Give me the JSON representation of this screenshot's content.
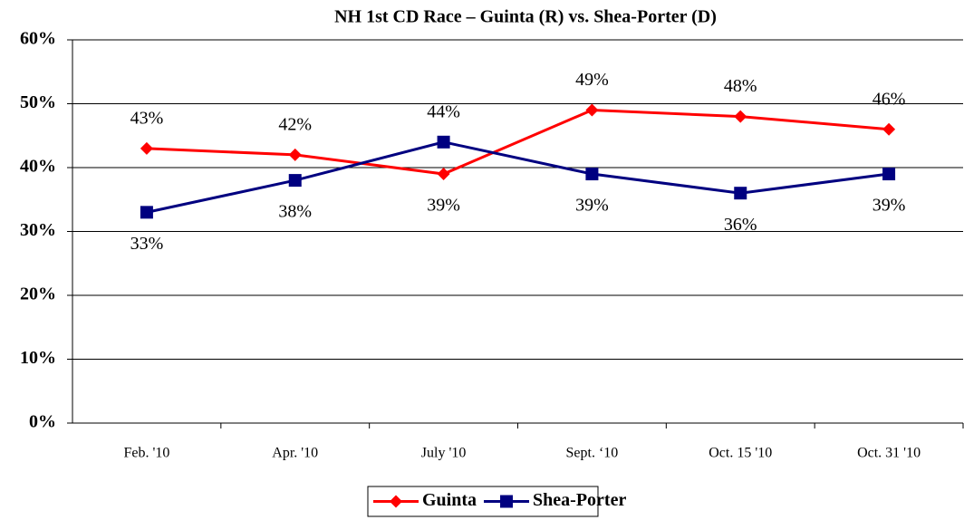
{
  "chart_data": {
    "type": "line",
    "title": "NH 1st CD Race – Guinta (R) vs. Shea-Porter (D)",
    "categories": [
      "Feb. '10",
      "Apr. '10",
      "July '10",
      "Sept. ‘10",
      "Oct. 15 '10",
      "Oct. 31 '10"
    ],
    "series": [
      {
        "name": "Guinta",
        "color": "#ff0000",
        "marker": "diamond",
        "values": [
          43,
          42,
          39,
          49,
          48,
          46
        ],
        "value_labels": [
          "43%",
          "42%",
          "39%",
          "49%",
          "48%",
          "46%"
        ]
      },
      {
        "name": "Shea-Porter",
        "color": "#000080",
        "marker": "square",
        "values": [
          33,
          38,
          44,
          39,
          36,
          39
        ],
        "value_labels": [
          "33%",
          "38%",
          "44%",
          "39%",
          "36%",
          "39%"
        ]
      }
    ],
    "ylim": [
      0,
      60
    ],
    "yticks": [
      {
        "value": 0,
        "label": "0%"
      },
      {
        "value": 10,
        "label": "10%"
      },
      {
        "value": 20,
        "label": "20%"
      },
      {
        "value": 30,
        "label": "30%"
      },
      {
        "value": 40,
        "label": "40%"
      },
      {
        "value": 50,
        "label": "50%"
      },
      {
        "value": 60,
        "label": "60%"
      }
    ],
    "grid": true,
    "legend": "bottom"
  }
}
